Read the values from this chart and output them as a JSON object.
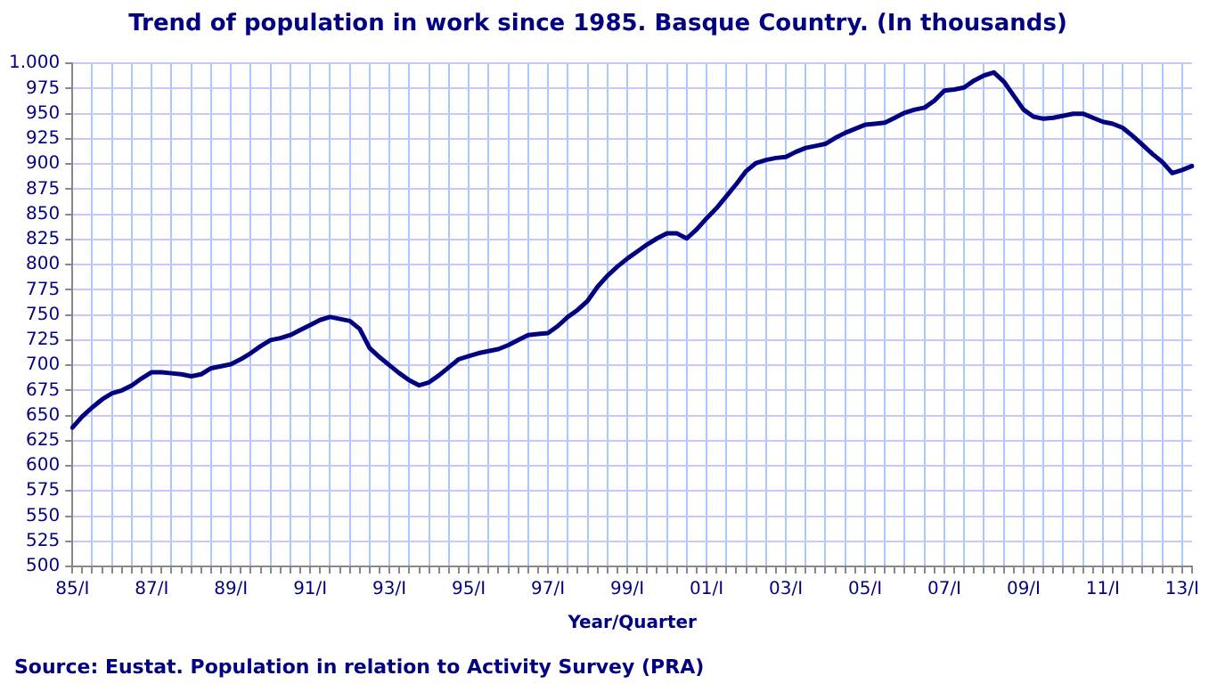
{
  "chart_data": {
    "type": "line",
    "title": "Trend of population in work since 1985. Basque Country. (In thousands)",
    "xlabel": "Year/Quarter",
    "annotations": [
      "Source: Eustat. Population in relation to Activity Survey (PRA)"
    ],
    "categories": [
      "85/I",
      null,
      null,
      null,
      null,
      null,
      null,
      null,
      "87/I",
      null,
      null,
      null,
      null,
      null,
      null,
      null,
      "89/I",
      null,
      null,
      null,
      null,
      null,
      null,
      null,
      "91/I",
      null,
      null,
      null,
      null,
      null,
      null,
      null,
      "93/I",
      null,
      null,
      null,
      null,
      null,
      null,
      null,
      "95/I",
      null,
      null,
      null,
      null,
      null,
      null,
      null,
      "97/I",
      null,
      null,
      null,
      null,
      null,
      null,
      null,
      "99/I",
      null,
      null,
      null,
      null,
      null,
      null,
      null,
      "01/I",
      null,
      null,
      null,
      null,
      null,
      null,
      null,
      "03/I",
      null,
      null,
      null,
      null,
      null,
      null,
      null,
      "05/I",
      null,
      null,
      null,
      null,
      null,
      null,
      null,
      "07/I",
      null,
      null,
      null,
      null,
      null,
      null,
      null,
      "09/I",
      null,
      null,
      null,
      null,
      null,
      null,
      null,
      "11/I",
      null,
      null,
      null,
      null,
      null,
      null,
      null,
      "13/I",
      null
    ],
    "series": [
      {
        "color": "#000080",
        "values": [
          638,
          649,
          658,
          666,
          672,
          675,
          680,
          687,
          693,
          693,
          692,
          691,
          689,
          691,
          697,
          699,
          701,
          706,
          712,
          719,
          725,
          727,
          730,
          735,
          740,
          745,
          748,
          746,
          744,
          736,
          717,
          708,
          700,
          692,
          685,
          680,
          683,
          690,
          698,
          706,
          709,
          712,
          714,
          716,
          720,
          725,
          730,
          731,
          732,
          739,
          748,
          755,
          764,
          778,
          789,
          798,
          806,
          813,
          820,
          826,
          831,
          831,
          826,
          835,
          846,
          856,
          868,
          880,
          893,
          901,
          904,
          906,
          907,
          912,
          916,
          918,
          920,
          926,
          931,
          935,
          939,
          940,
          941,
          946,
          951,
          954,
          956,
          963,
          973,
          974,
          976,
          983,
          988,
          991,
          982,
          968,
          954,
          947,
          945,
          946,
          948,
          950,
          950,
          946,
          942,
          940,
          936,
          928,
          919,
          910,
          902,
          891,
          894,
          898
        ]
      }
    ],
    "ylim": [
      500,
      1000
    ],
    "yticks": [
      500,
      525,
      550,
      575,
      600,
      625,
      650,
      675,
      700,
      725,
      750,
      775,
      800,
      825,
      850,
      875,
      900,
      925,
      950,
      975,
      {
        "value": 1000,
        "label": "1.000"
      }
    ],
    "grid": true,
    "marker": "none",
    "line_style": "solid"
  }
}
